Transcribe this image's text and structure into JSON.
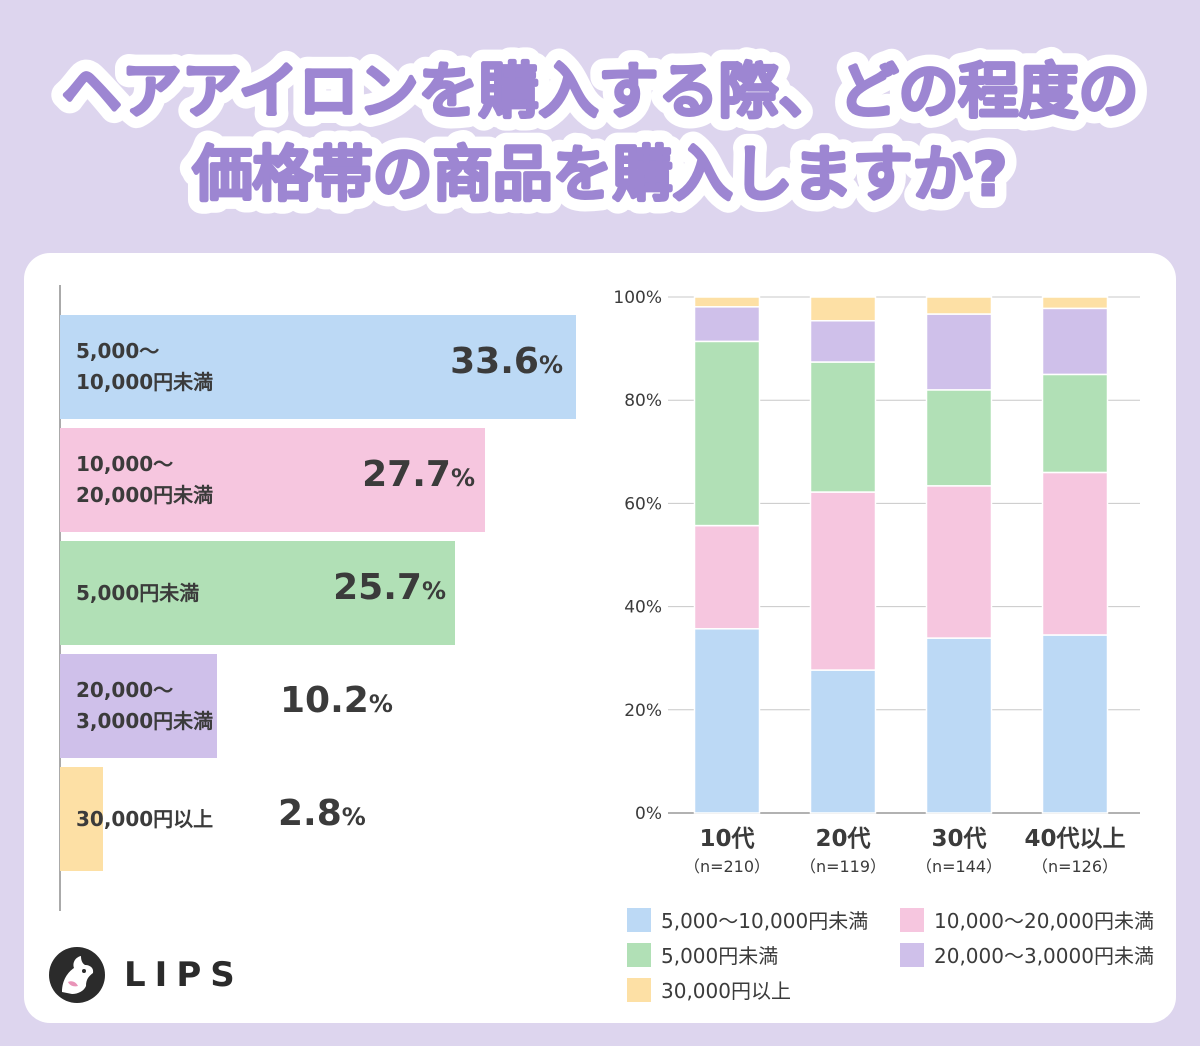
{
  "title": {
    "line1": "ヘアアイロンを購入する際、どの程度の",
    "line2": "価格帯の商品を購入しますか?"
  },
  "colors": {
    "background": "#ddd5ee",
    "title_fill": "#9d86d2",
    "blue": "#bcd9f5",
    "pink": "#f6c6df",
    "green": "#b1e0b6",
    "purple": "#cfc0ea",
    "orange": "#fde0a5"
  },
  "chart_data": [
    {
      "type": "bar",
      "orientation": "horizontal",
      "categories": [
        "5,000〜\n10,000円未満",
        "10,000〜\n20,000円未満",
        "5,000円未満",
        "20,000〜\n3,0000円未満",
        "30,000円以上"
      ],
      "values": [
        33.6,
        27.7,
        25.7,
        10.2,
        2.8
      ],
      "value_labels": [
        "33.6",
        "27.7",
        "25.7",
        "10.2",
        "2.8"
      ],
      "unit": "%",
      "colors": [
        "#bcd9f5",
        "#f6c6df",
        "#b1e0b6",
        "#cfc0ea",
        "#fde0a5"
      ],
      "xlim": [
        0,
        33.6
      ]
    },
    {
      "type": "bar",
      "stacked": true,
      "categories": [
        "10代",
        "20代",
        "30代",
        "40代以上"
      ],
      "subcategories": [
        "（n=210）",
        "（n=119）",
        "（n=144）",
        "（n=126）"
      ],
      "ylim": [
        0,
        100
      ],
      "yticks": [
        "0%",
        "20%",
        "40%",
        "60%",
        "80%",
        "100%"
      ],
      "grid": true,
      "series": [
        {
          "name": "5,000〜10,000円未満",
          "color": "#bcd9f5",
          "values": [
            35.7,
            27.7,
            33.9,
            34.5
          ]
        },
        {
          "name": "10,000〜20,000円未満",
          "color": "#f6c6df",
          "values": [
            20.0,
            34.5,
            29.5,
            31.5
          ]
        },
        {
          "name": "5,000円未満",
          "color": "#b1e0b6",
          "values": [
            35.7,
            25.2,
            18.6,
            19.0
          ]
        },
        {
          "name": "20,000〜3,0000円未満",
          "color": "#cfc0ea",
          "values": [
            6.7,
            8.0,
            14.7,
            12.8
          ]
        },
        {
          "name": "30,000円以上",
          "color": "#fde0a5",
          "values": [
            1.9,
            4.6,
            3.3,
            2.2
          ]
        }
      ],
      "legend": [
        "5,000〜10,000円未満",
        "10,000〜20,000円未満",
        "5,000円未満",
        "20,000〜3,0000円未満",
        "30,000円以上"
      ]
    }
  ],
  "brand": {
    "name": "LIPS"
  }
}
